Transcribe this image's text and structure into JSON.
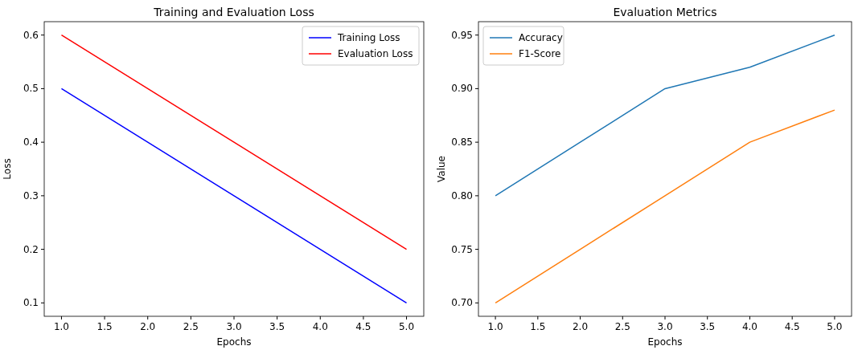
{
  "chart_data": [
    {
      "type": "line",
      "title": "Training and Evaluation Loss",
      "xlabel": "Epochs",
      "ylabel": "Loss",
      "legend": "top right",
      "xlim": [
        0.8,
        5.2
      ],
      "xticks": [
        {
          "value": 1,
          "label": "1.0"
        },
        {
          "value": 1.5,
          "label": "1.5"
        },
        {
          "value": 2,
          "label": "2.0"
        },
        {
          "value": 2.5,
          "label": "2.5"
        },
        {
          "value": 3,
          "label": "3.0"
        },
        {
          "value": 3.5,
          "label": "3.5"
        },
        {
          "value": 4,
          "label": "4.0"
        },
        {
          "value": 4.5,
          "label": "4.5"
        },
        {
          "value": 5,
          "label": "5.0"
        }
      ],
      "ylim": [
        0.075,
        0.625
      ],
      "yticks": [
        0.1,
        0.2,
        0.3,
        0.4,
        0.5,
        0.6
      ],
      "x": [
        1,
        2,
        3,
        4,
        5
      ],
      "series": [
        {
          "name": "Training Loss",
          "color": "#0000ff",
          "values": [
            0.5,
            0.4,
            0.3,
            0.2,
            0.1
          ]
        },
        {
          "name": "Evaluation Loss",
          "color": "#ff0000",
          "values": [
            0.6,
            0.5,
            0.4,
            0.3,
            0.2
          ]
        }
      ]
    },
    {
      "type": "line",
      "title": "Evaluation Metrics",
      "xlabel": "Epochs",
      "ylabel": "Value",
      "legend": "top left",
      "xlim": [
        0.8,
        5.2
      ],
      "xticks": [
        {
          "value": 1,
          "label": "1.0"
        },
        {
          "value": 1.5,
          "label": "1.5"
        },
        {
          "value": 2,
          "label": "2.0"
        },
        {
          "value": 2.5,
          "label": "2.5"
        },
        {
          "value": 3,
          "label": "3.0"
        },
        {
          "value": 3.5,
          "label": "3.5"
        },
        {
          "value": 4,
          "label": "4.0"
        },
        {
          "value": 4.5,
          "label": "4.5"
        },
        {
          "value": 5,
          "label": "5.0"
        }
      ],
      "ylim": [
        0.6875,
        0.9625
      ],
      "yticks": [
        {
          "value": 0.7,
          "label": "0.70"
        },
        0.75,
        {
          "value": 0.8,
          "label": "0.80"
        },
        0.85,
        {
          "value": 0.9,
          "label": "0.90"
        },
        0.95
      ],
      "x": [
        1,
        2,
        3,
        4,
        5
      ],
      "series": [
        {
          "name": "Accuracy",
          "color": "#1f77b4",
          "values": [
            0.8,
            0.85,
            0.9,
            0.92,
            0.95
          ]
        },
        {
          "name": "F1-Score",
          "color": "#ff7f0e",
          "values": [
            0.7,
            0.75,
            0.8,
            0.85,
            0.88
          ]
        }
      ]
    }
  ]
}
